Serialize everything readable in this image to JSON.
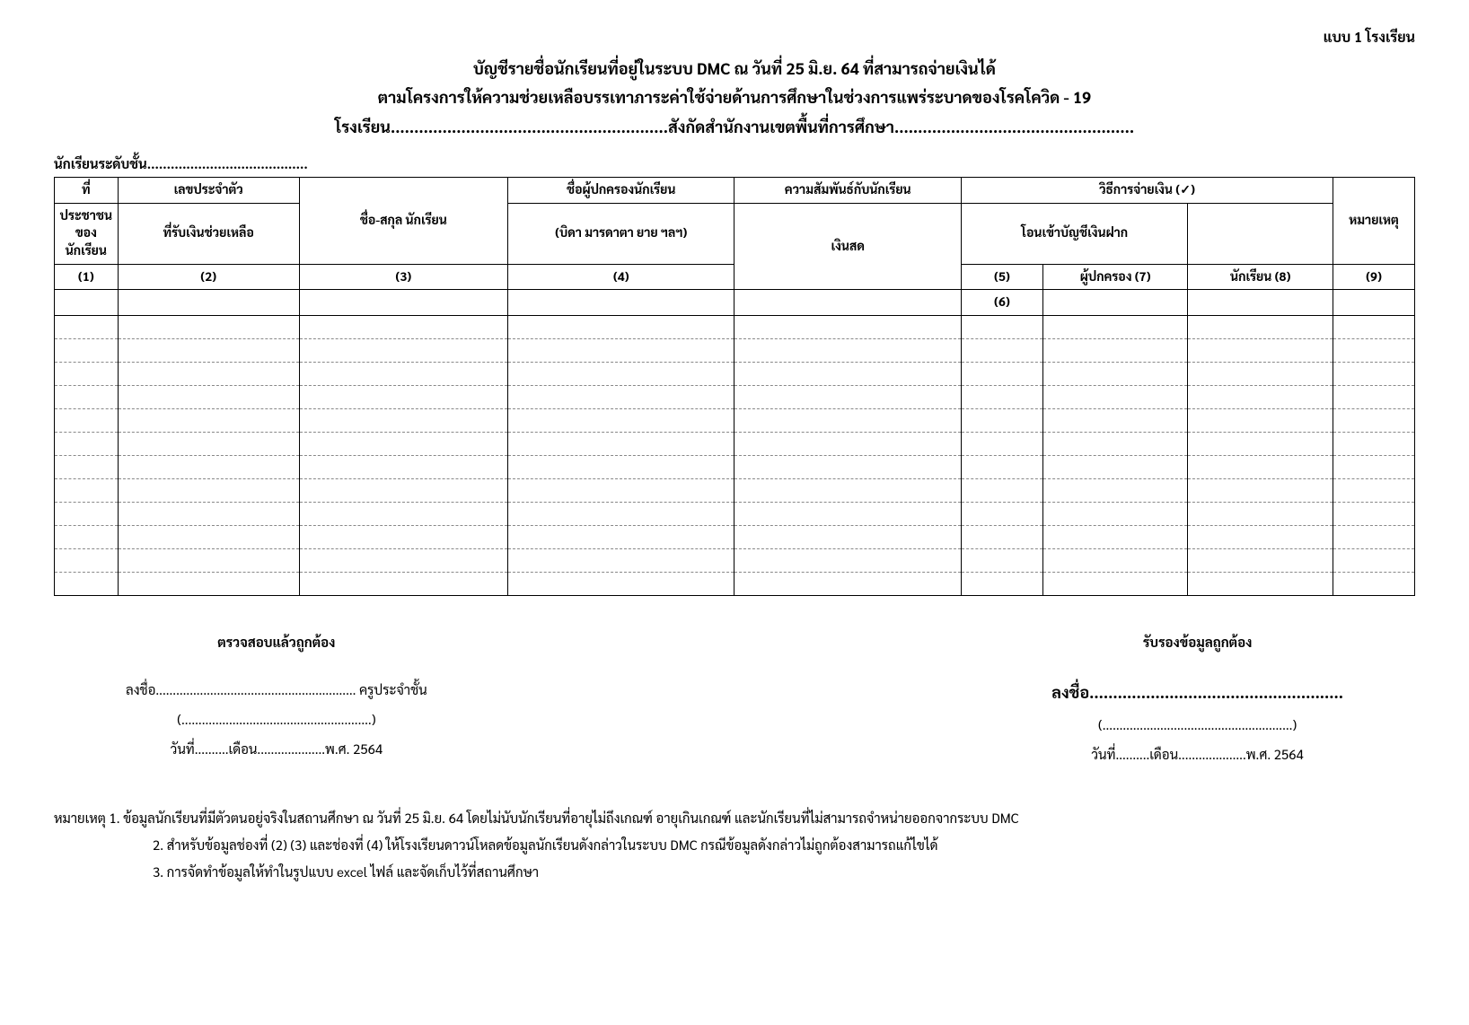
{
  "form_label": "แบบ 1 โรงเรียน",
  "title": {
    "line1": "บัญชีรายชื่อนักเรียนที่อยู่ในระบบ DMC ณ วันที่ 25 มิ.ย. 64 ที่สามารถจ่ายเงินได้",
    "line2": "ตามโครงการให้ความช่วยเหลือบรรเทาภาระค่าใช้จ่ายด้านการศึกษาในช่วงการแพร่ระบาดของโรคโควิด - 19",
    "line3": "โรงเรียน...........................................................สังกัดสำนักงานเขตพื้นที่การศึกษา..................................................."
  },
  "level_line": "นักเรียนระดับชั้น.........................................",
  "table": {
    "headers": {
      "h1_top": "ที่",
      "h2_top": "เลขประจำตัว",
      "h2_mid": "ประชาชนของนักเรียน",
      "h3": "ชื่อ-สกุล นักเรียน",
      "h4_top": "ชื่อผู้ปกครองนักเรียน",
      "h4_mid": "ที่รับเงินช่วยเหลือ",
      "h5_top": "ความสัมพันธ์กับนักเรียน",
      "h5_mid": "(บิดา มารดาตา ยาย ฯลฯ)",
      "h6_top": "วิธีการจ่ายเงิน (✓)",
      "h6a": "เงินสด",
      "h6b_top": "โอนเข้าบัญชีเงินฝาก",
      "h6b1": "ผู้ปกครอง (7)",
      "h6b2": "นักเรียน (8)",
      "h9": "หมายเหตุ",
      "n1": "(1)",
      "n2": "(2)",
      "n3": "(3)",
      "n4": "(4)",
      "n5": "(5)",
      "n6": "(6)",
      "n9": "(9)"
    },
    "empty_rows": 12
  },
  "signatures": {
    "left": {
      "heading": "ตรวจสอบแล้วถูกต้อง",
      "line1": "ลงชื่อ........................................................... ครูประจำชั้น",
      "line2": "(........................................................)",
      "line3": "วันที่..........เดือน....................พ.ศ. 2564"
    },
    "right": {
      "heading": "รับรองข้อมูลถูกต้อง",
      "line1": "ลงชื่อ......................................................",
      "line2": "(........................................................)",
      "line3": "วันที่..........เดือน....................พ.ศ. 2564"
    }
  },
  "notes": {
    "n1": "หมายเหตุ 1. ข้อมูลนักเรียนที่มีตัวตนอยู่จริงในสถานศึกษา ณ วันที่ 25 มิ.ย. 64 โดยไม่นับนักเรียนที่อายุไม่ถึงเกณฑ์ อายุเกินเกณฑ์ และนักเรียนที่ไม่สามารถจำหน่ายออกจากระบบ DMC",
    "n2": "2. สำหรับข้อมูลช่องที่ (2) (3) และช่องที่ (4) ให้โรงเรียนดาวน์โหลดข้อมูลนักเรียนดังกล่าวในระบบ DMC กรณีข้อมูลดังกล่าวไม่ถูกต้องสามารถแก้ไขได้",
    "n3": "3. การจัดทำข้อมูลให้ทำในรูปแบบ excel ไฟล์ และจัดเก็บไว้ที่สถานศึกษา"
  }
}
